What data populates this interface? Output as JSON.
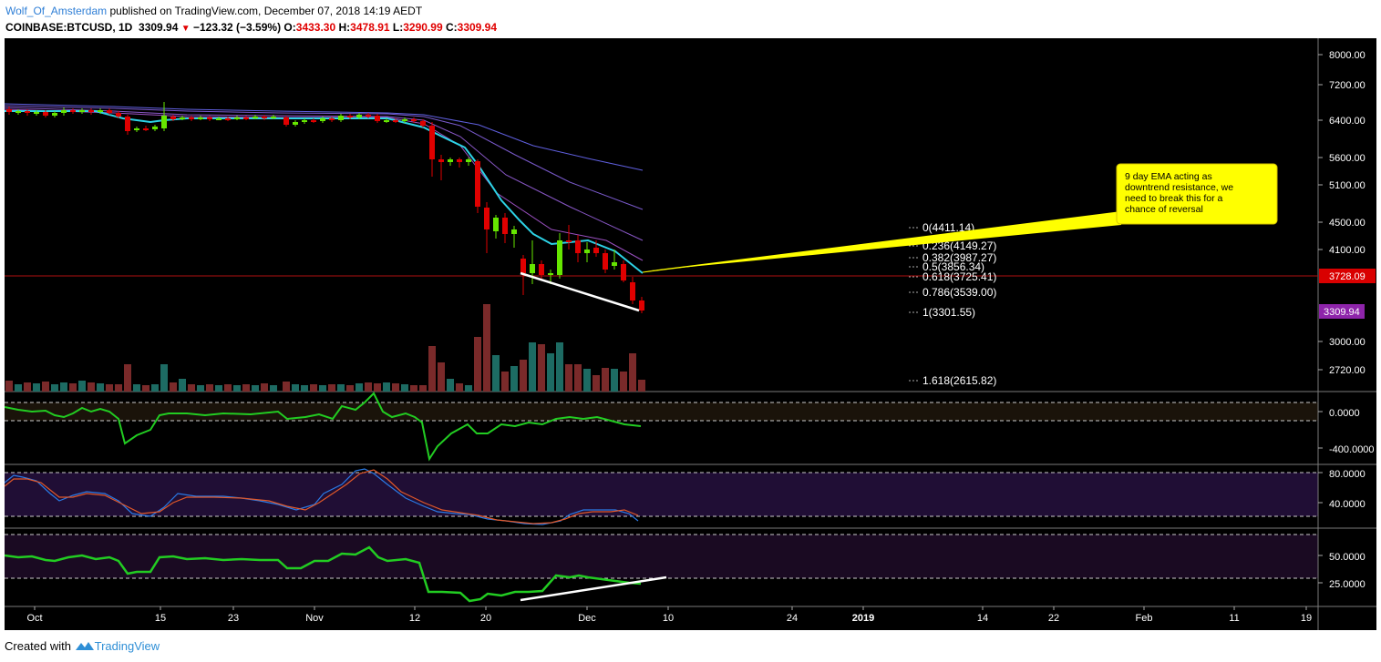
{
  "header": {
    "author": "Wolf_Of_Amsterdam",
    "published": "published on TradingView.com, December 07, 2018 14:19 AEDT",
    "symbol": "COINBASE:BTCUSD, 1D",
    "last": "3309.94",
    "change": "−123.32 (−3.59%)",
    "o_label": "O:",
    "o_value": "3433.30",
    "h_label": "H:",
    "h_value": "3478.91",
    "l_label": "L:",
    "l_value": "3290.99",
    "c_label": "C:",
    "c_value": "3309.94"
  },
  "price_axis": {
    "ticks": [
      "8000.00",
      "7200.00",
      "6400.00",
      "5600.00",
      "5100.00",
      "4500.00",
      "4100.00",
      "3000.00",
      "2720.00"
    ],
    "hline_label": "3728.09",
    "last_label": "3309.94"
  },
  "fib_levels": [
    {
      "label": "0(4411.14)"
    },
    {
      "label": "0.236(4149.27)"
    },
    {
      "label": "0.382(3987.27)"
    },
    {
      "label": "0.5(3856.34)"
    },
    {
      "label": "0.618(3725.41)"
    },
    {
      "label": "0.786(3539.00)"
    },
    {
      "label": "1(3301.55)"
    },
    {
      "label": "1.618(2615.82)"
    }
  ],
  "annotation": {
    "lines": [
      "9 day EMA acting as",
      "downtrend resistance, we",
      "need to break this for a",
      "chance of reversal"
    ]
  },
  "pane2_axis": [
    "0.0000",
    "-400.0000"
  ],
  "pane3_axis": [
    "80.0000",
    "40.0000"
  ],
  "pane4_axis": [
    "50.0000",
    "25.0000"
  ],
  "time_axis": [
    "Oct",
    "15",
    "23",
    "Nov",
    "12",
    "20",
    "Dec",
    "10",
    "24",
    "2019",
    "14",
    "22",
    "Feb",
    "11",
    "19"
  ],
  "footer": {
    "created_with": "Created with",
    "brand": "TradingView"
  },
  "colors": {
    "up": "#66e600",
    "down": "#e00000",
    "ema9": "#2dd3e6",
    "annotation_bg": "#ffff00",
    "macd_line": "#22cc22"
  }
}
